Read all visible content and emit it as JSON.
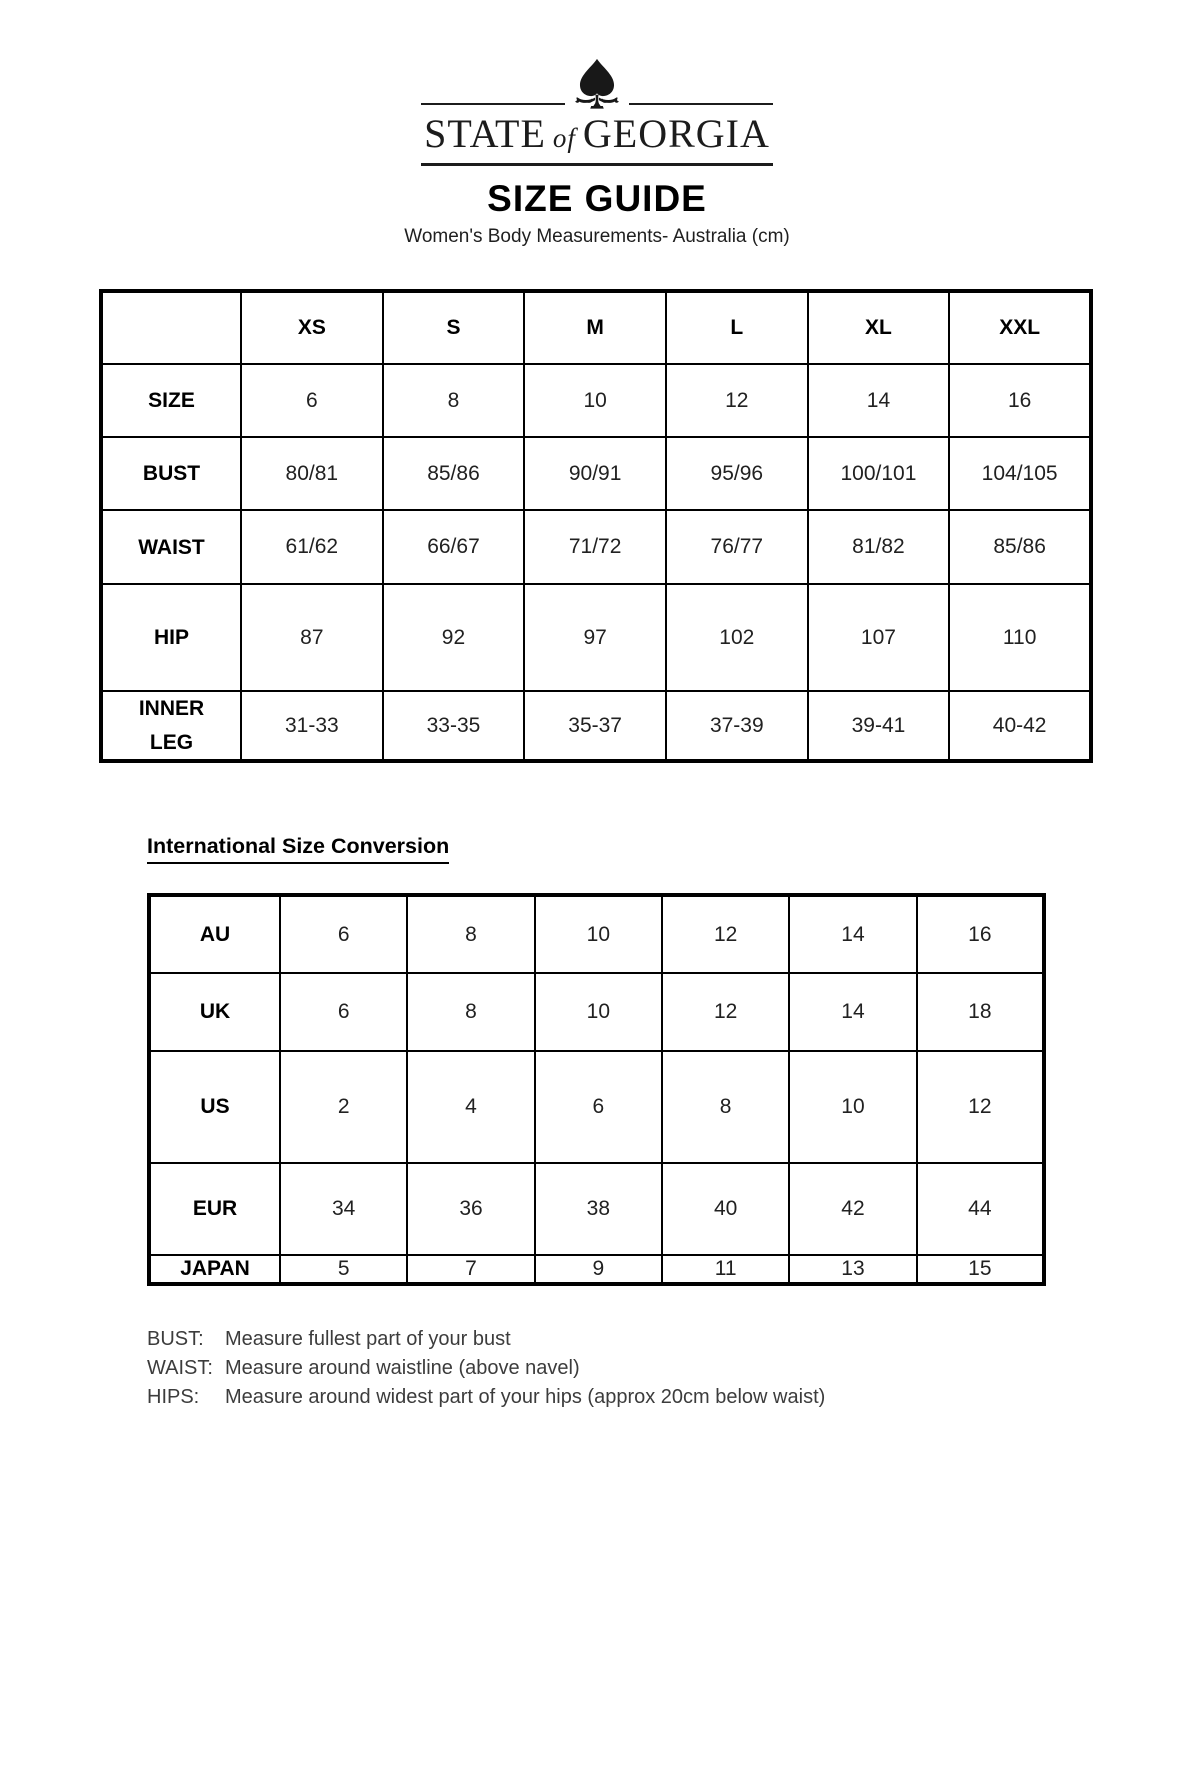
{
  "brand": {
    "logo_text": {
      "left": "STATE",
      "middle": "of",
      "right": "GEORGIA"
    },
    "tree_icon": "spade-tree-icon"
  },
  "header": {
    "title": "SIZE GUIDE",
    "subtitle": "Women's Body Measurements- Australia (cm)"
  },
  "body_measurements_table": {
    "columns": [
      "",
      "XS",
      "S",
      "M",
      "L",
      "XL",
      "XXL"
    ],
    "rows": [
      {
        "label": "SIZE",
        "values": [
          "6",
          "8",
          "10",
          "12",
          "14",
          "16"
        ]
      },
      {
        "label": "BUST",
        "values": [
          "80/81",
          "85/86",
          "90/91",
          "95/96",
          "100/101",
          "104/105"
        ]
      },
      {
        "label": "WAIST",
        "values": [
          "61/62",
          "66/67",
          "71/72",
          "76/77",
          "81/82",
          "85/86"
        ]
      },
      {
        "label": "HIP",
        "values": [
          "87",
          "92",
          "97",
          "102",
          "107",
          "110"
        ]
      },
      {
        "label": "INNER LEG",
        "values": [
          "31-33",
          "33-35",
          "35-37",
          "37-39",
          "39-41",
          "40-42"
        ]
      }
    ]
  },
  "conversion_section": {
    "heading": "International Size Conversion",
    "table": {
      "rows": [
        {
          "label": "AU",
          "values": [
            "6",
            "8",
            "10",
            "12",
            "14",
            "16"
          ]
        },
        {
          "label": "UK",
          "values": [
            "6",
            "8",
            "10",
            "12",
            "14",
            "18"
          ]
        },
        {
          "label": "US",
          "values": [
            "2",
            "4",
            "6",
            "8",
            "10",
            "12"
          ]
        },
        {
          "label": "EUR",
          "values": [
            "34",
            "36",
            "38",
            "40",
            "42",
            "44"
          ]
        },
        {
          "label": "JAPAN",
          "values": [
            "5",
            "7",
            "9",
            "11",
            "13",
            "15"
          ]
        }
      ]
    }
  },
  "notes": [
    {
      "label": "BUST:",
      "text": "Measure fullest part of your bust"
    },
    {
      "label": "WAIST:",
      "text": "Measure around waistline (above navel)"
    },
    {
      "label": "HIPS:",
      "text": "Measure around widest part of your hips (approx 20cm below waist)"
    }
  ],
  "colors": {
    "ink": "#1c1c1c",
    "border": "#000000",
    "note_text": "#3c3c3c",
    "background": "#ffffff"
  }
}
